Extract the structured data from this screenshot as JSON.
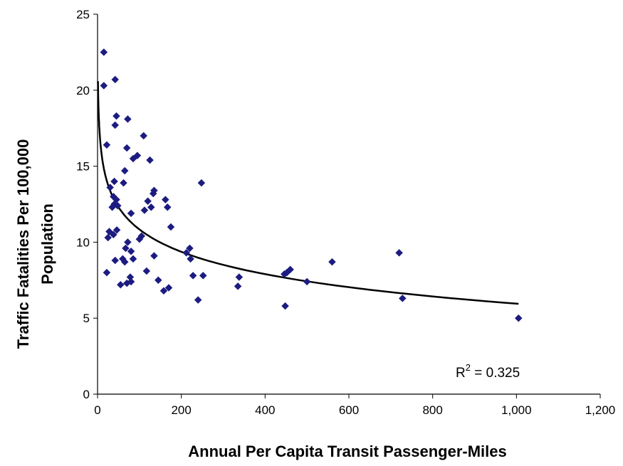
{
  "chart_data": {
    "type": "scatter",
    "title": "",
    "xlabel": "Annual Per Capita Transit Passenger-Miles",
    "ylabel_lines": [
      "Traffic Fatalities Per 100,000",
      "Population"
    ],
    "xlim": [
      0,
      1200
    ],
    "ylim": [
      0,
      25
    ],
    "x_ticks": [
      0,
      200,
      400,
      600,
      800,
      1000,
      1200
    ],
    "x_tick_labels": [
      "0",
      "200",
      "400",
      "600",
      "800",
      "1,000",
      "1,200"
    ],
    "y_ticks": [
      0,
      5,
      10,
      15,
      20,
      25
    ],
    "y_tick_labels": [
      "0",
      "5",
      "10",
      "15",
      "20",
      "25"
    ],
    "grid": false,
    "legend": "none",
    "marker_color": "#1c1c80",
    "trendline": {
      "type": "logarithmic",
      "a": 20.6,
      "b": -2.12,
      "x_range": [
        1,
        1005
      ],
      "color": "#000000"
    },
    "annotation": {
      "base": "R",
      "sup": "2",
      "rest": " = 0.325"
    },
    "points": [
      [
        15,
        22.5
      ],
      [
        15,
        20.3
      ],
      [
        42,
        20.7
      ],
      [
        22,
        16.4
      ],
      [
        45,
        18.3
      ],
      [
        42,
        17.7
      ],
      [
        72,
        18.1
      ],
      [
        110,
        17.0
      ],
      [
        70,
        16.2
      ],
      [
        95,
        15.7
      ],
      [
        85,
        15.5
      ],
      [
        125,
        15.4
      ],
      [
        40,
        14.0
      ],
      [
        65,
        14.7
      ],
      [
        62,
        13.9
      ],
      [
        30,
        13.6
      ],
      [
        38,
        13.0
      ],
      [
        45,
        12.8
      ],
      [
        40,
        12.5
      ],
      [
        48,
        12.4
      ],
      [
        35,
        12.3
      ],
      [
        135,
        13.4
      ],
      [
        133,
        13.2
      ],
      [
        162,
        12.8
      ],
      [
        120,
        12.7
      ],
      [
        167,
        12.3
      ],
      [
        128,
        12.3
      ],
      [
        112,
        12.1
      ],
      [
        80,
        11.9
      ],
      [
        175,
        11.0
      ],
      [
        28,
        10.7
      ],
      [
        46,
        10.8
      ],
      [
        38,
        10.5
      ],
      [
        25,
        10.3
      ],
      [
        105,
        10.4
      ],
      [
        100,
        10.2
      ],
      [
        72,
        10.0
      ],
      [
        67,
        9.6
      ],
      [
        80,
        9.4
      ],
      [
        220,
        9.6
      ],
      [
        212,
        9.3
      ],
      [
        135,
        9.1
      ],
      [
        60,
        8.9
      ],
      [
        85,
        8.9
      ],
      [
        42,
        8.8
      ],
      [
        65,
        8.7
      ],
      [
        222,
        8.9
      ],
      [
        117,
        8.1
      ],
      [
        22,
        8.0
      ],
      [
        78,
        7.7
      ],
      [
        228,
        7.8
      ],
      [
        252,
        7.8
      ],
      [
        145,
        7.5
      ],
      [
        55,
        7.2
      ],
      [
        70,
        7.3
      ],
      [
        80,
        7.4
      ],
      [
        170,
        7.0
      ],
      [
        158,
        6.8
      ],
      [
        240,
        6.2
      ],
      [
        338,
        7.7
      ],
      [
        335,
        7.1
      ],
      [
        446,
        7.9
      ],
      [
        452,
        8.0
      ],
      [
        460,
        8.2
      ],
      [
        500,
        7.4
      ],
      [
        448,
        5.8
      ],
      [
        560,
        8.7
      ],
      [
        720,
        9.3
      ],
      [
        728,
        6.3
      ],
      [
        248,
        13.9
      ],
      [
        1005,
        5.0
      ]
    ]
  }
}
